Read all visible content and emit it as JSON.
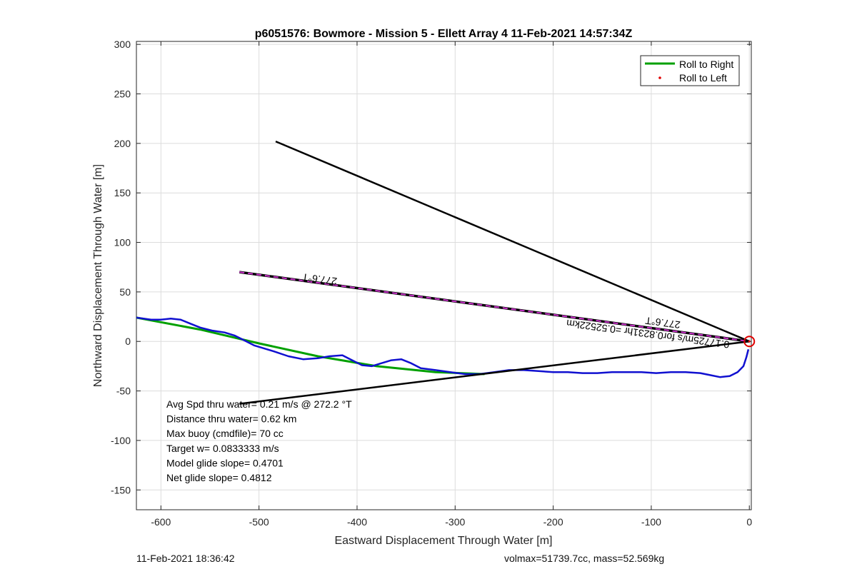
{
  "chart_data": {
    "type": "line",
    "title": "p6051576: Bowmore - Mission 5 - Ellett Array 4 11-Feb-2021 14:57:34Z",
    "xlabel": "Eastward Displacement Through Water [m]",
    "ylabel": "Northward Displacement Through Water [m]",
    "xlim": [
      -625,
      2
    ],
    "ylim": [
      -170,
      303
    ],
    "xticks": [
      -600,
      -500,
      -400,
      -300,
      -200,
      -100,
      0
    ],
    "yticks": [
      -150,
      -100,
      -50,
      0,
      50,
      100,
      150,
      200,
      250,
      300
    ],
    "grid": true,
    "legend_position": "top-right",
    "legend": [
      {
        "label": "Roll to Right",
        "color": "#00a000",
        "marker": "line"
      },
      {
        "label": "Roll to Left",
        "color": "#e00000",
        "marker": "dot"
      }
    ],
    "series": [
      {
        "name": "Roll to Right",
        "color": "#00a000",
        "x": [
          -625,
          -560,
          -500,
          -440,
          -380,
          -320,
          -270
        ],
        "y": [
          24,
          12,
          -2,
          -15,
          -25,
          -31,
          -33
        ]
      },
      {
        "color": "#1010d0",
        "x": [
          -625,
          -610,
          -600,
          -590,
          -580,
          -570,
          -560,
          -548,
          -535,
          -525,
          -515,
          -505,
          -495,
          -485,
          -470,
          -455,
          -440,
          -428,
          -415,
          -405,
          -395,
          -385,
          -375,
          -365,
          -355,
          -345,
          -335,
          -320,
          -305,
          -290,
          -275,
          -260,
          -245,
          -230,
          -215,
          -200,
          -185,
          -170,
          -155,
          -140,
          -125,
          -110,
          -95,
          -80,
          -65,
          -50,
          -40,
          -30,
          -20,
          -12,
          -6,
          -3,
          -1
        ],
        "y": [
          24,
          22,
          22,
          23,
          22,
          18,
          14,
          11,
          9,
          6,
          1,
          -4,
          -7,
          -10,
          -15,
          -18,
          -17,
          -15,
          -14,
          -19,
          -24,
          -25,
          -22,
          -19,
          -18,
          -22,
          -27,
          -29,
          -31,
          -33,
          -33,
          -31,
          -29,
          -29,
          -30,
          -31,
          -31,
          -32,
          -32,
          -31,
          -31,
          -31,
          -32,
          -31,
          -31,
          -32,
          -34,
          -36,
          -35,
          -31,
          -25,
          -16,
          -8
        ]
      },
      {
        "color": "#000000",
        "x": [
          -483,
          0
        ],
        "y": [
          202,
          0
        ]
      },
      {
        "color": "#000000",
        "x": [
          -520,
          0
        ],
        "y": [
          -63,
          0
        ]
      },
      {
        "color": "#cc33cc",
        "style": "dashed-black-magenta",
        "x": [
          -520,
          0
        ],
        "y": [
          70,
          0
        ]
      },
      {
        "name": "Roll to Left",
        "color": "#e00000",
        "x": [
          0
        ],
        "y": [
          0
        ]
      }
    ],
    "annotations": [
      {
        "text": "277.6°T",
        "x": -420,
        "y": 64,
        "angle": 187.6
      },
      {
        "text": "277.6°T",
        "x": -70,
        "y": 20,
        "angle": 187.6
      },
      {
        "text": "0.17725m/s for0.8231hr =0.52522km",
        "x": -20,
        "y": 0,
        "angle": 187.6
      }
    ],
    "stats_lines": [
      "Avg Spd thru water=  0.21 m/s @ 272.2 °T",
      "Distance thru water=  0.62 km",
      "Max buoy (cmdfile)= 70 cc",
      "Target w= 0.0833333 m/s",
      "Model glide slope= 0.4701",
      "Net glide slope= 0.4812"
    ]
  },
  "footer": {
    "left": "11-Feb-2021 18:36:42",
    "right": "volmax=51739.7cc, mass=52.569kg"
  }
}
